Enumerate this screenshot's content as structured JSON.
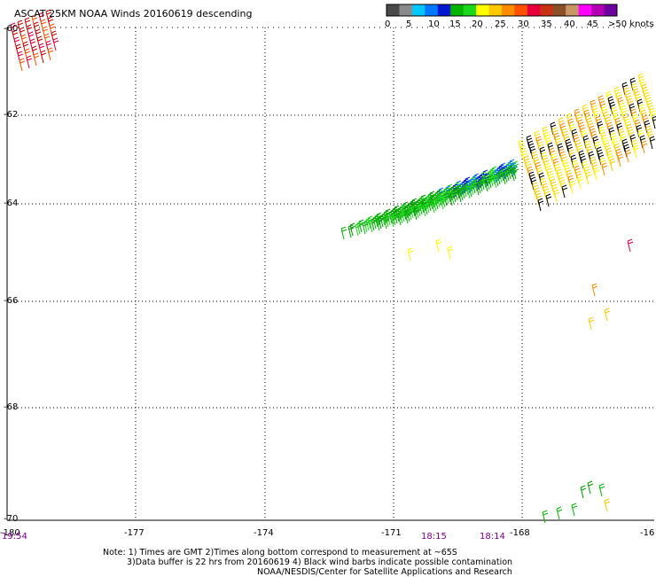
{
  "title": "ASCAT 25KM NOAA Winds 20160619 descending",
  "legend": {
    "colors": [
      "#4a4a4a",
      "#8a8a8a",
      "#00c8ff",
      "#0078ff",
      "#0018d0",
      "#00b400",
      "#1ad81a",
      "#ffff00",
      "#ffc800",
      "#ff8c00",
      "#ff5000",
      "#e8003c",
      "#c83214",
      "#8c5028",
      "#c89664",
      "#ff00ff",
      "#b400b4",
      "#6e00a0"
    ],
    "ticks": [
      "0",
      "5",
      "10",
      "15",
      "20",
      "25",
      "30",
      "35",
      "40",
      "45",
      ">50 knots"
    ]
  },
  "axes": {
    "lat_labels": [
      "-60",
      "-62",
      "-64",
      "-66",
      "-68",
      "-70"
    ],
    "lon_labels": [
      "-180",
      "-177",
      "-174",
      "-171",
      "-168",
      "-16"
    ]
  },
  "times": [
    "19:54",
    "18:15",
    "18:14"
  ],
  "notes": [
    "Note: 1) Times are GMT 2)Times along bottom correspond to measurement at ~65S",
    "3)Data buffer is 22 hrs from 20160619 4) Black wind barbs indicate possible contamination",
    "NOAA/NESDIS/Center for Satellite Applications and Research"
  ]
}
